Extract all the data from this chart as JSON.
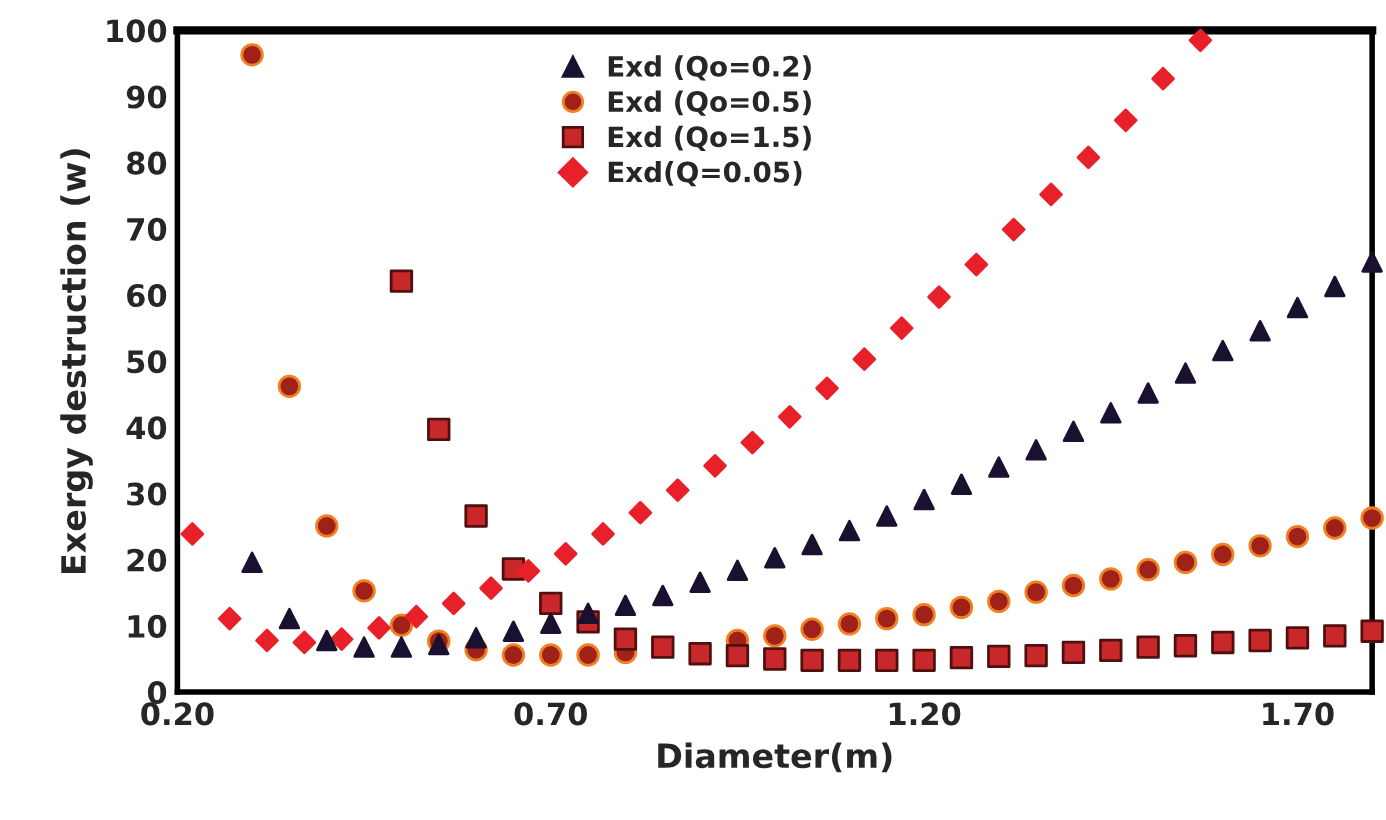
{
  "chart_data": {
    "type": "scatter",
    "xlabel": "Diameter(m)",
    "ylabel": "Exergy destruction (w)",
    "xlim": [
      0.2,
      1.8
    ],
    "xticks": [
      {
        "value": 0.2,
        "label": "0.20"
      },
      {
        "value": 0.7,
        "label": "0.70"
      },
      {
        "value": 1.2,
        "label": "1.20"
      },
      {
        "value": 1.7,
        "label": "1.70"
      }
    ],
    "ylim": [
      0,
      100
    ],
    "yticks": [
      0,
      10,
      20,
      30,
      40,
      50,
      60,
      70,
      80,
      90,
      100
    ],
    "grid": false,
    "legend": "top",
    "series": [
      {
        "name": "Exd (Qo=0.2)",
        "color": "#1a1030",
        "marker": "triangle",
        "x": [
          0.3,
          0.35,
          0.4,
          0.45,
          0.5,
          0.55,
          0.6,
          0.65,
          0.7,
          0.75,
          0.8,
          0.85,
          0.9,
          0.95,
          1.0,
          1.05,
          1.1,
          1.15,
          1.2,
          1.25,
          1.3,
          1.35,
          1.4,
          1.45,
          1.5,
          1.55,
          1.6,
          1.65,
          1.7,
          1.75,
          1.8
        ],
        "values": [
          19.6,
          11.1,
          7.8,
          6.8,
          6.8,
          7.2,
          8.2,
          9.2,
          10.4,
          11.9,
          13.1,
          14.6,
          16.6,
          18.4,
          20.3,
          22.3,
          24.4,
          26.6,
          29.1,
          31.4,
          34.0,
          36.6,
          39.4,
          42.2,
          45.2,
          48.2,
          51.6,
          54.6,
          58.1,
          61.3,
          65.0
        ]
      },
      {
        "name": "Exd (Qo=0.5)",
        "color": "#a0201a",
        "marker": "circle",
        "x": [
          0.3,
          0.35,
          0.4,
          0.45,
          0.5,
          0.55,
          0.6,
          0.65,
          0.7,
          0.75,
          0.8,
          0.85,
          0.9,
          0.95,
          1.0,
          1.05,
          1.1,
          1.15,
          1.2,
          1.25,
          1.3,
          1.35,
          1.4,
          1.45,
          1.5,
          1.55,
          1.6,
          1.65,
          1.7,
          1.75,
          1.8
        ],
        "values": [
          96.3,
          46.2,
          25.1,
          15.3,
          10.1,
          7.7,
          6.4,
          5.6,
          5.6,
          5.6,
          6.0,
          null,
          null,
          7.8,
          8.5,
          9.5,
          10.3,
          11.1,
          11.7,
          12.8,
          13.7,
          15.1,
          16.1,
          17.1,
          18.5,
          19.6,
          20.8,
          22.1,
          23.5,
          24.8,
          26.3
        ]
      },
      {
        "name": "Exd (Qo=1.5)",
        "color": "#c8282a",
        "marker": "square",
        "x": [
          0.5,
          0.55,
          0.6,
          0.65,
          0.7,
          0.75,
          0.8,
          0.85,
          0.9,
          0.95,
          1.0,
          1.05,
          1.1,
          1.15,
          1.2,
          1.25,
          1.3,
          1.35,
          1.4,
          1.45,
          1.5,
          1.55,
          1.6,
          1.65,
          1.7,
          1.75,
          1.8
        ],
        "values": [
          62.1,
          39.7,
          26.6,
          18.6,
          13.4,
          10.6,
          8.0,
          6.8,
          5.8,
          5.5,
          5.0,
          4.8,
          4.8,
          4.8,
          4.8,
          5.2,
          5.4,
          5.5,
          6.0,
          6.3,
          6.8,
          7.0,
          7.5,
          7.8,
          8.2,
          8.5,
          9.2
        ]
      },
      {
        "name": "Exd(Q=0.05)",
        "color": "#e8202a",
        "marker": "diamond",
        "x": [
          0.22,
          0.27,
          0.32,
          0.37,
          0.42,
          0.47,
          0.52,
          0.57,
          0.62,
          0.67,
          0.72,
          0.77,
          0.82,
          0.87,
          0.92,
          0.97,
          1.02,
          1.07,
          1.12,
          1.17,
          1.22,
          1.27,
          1.32,
          1.37,
          1.42,
          1.47,
          1.52,
          1.57
        ],
        "values": [
          23.9,
          11.1,
          7.8,
          7.5,
          8.0,
          9.7,
          11.4,
          13.4,
          15.7,
          18.3,
          20.9,
          23.9,
          27.1,
          30.5,
          34.2,
          37.7,
          41.6,
          45.9,
          50.3,
          55.0,
          59.7,
          64.6,
          69.9,
          75.2,
          80.8,
          86.4,
          92.7,
          98.5
        ]
      }
    ]
  }
}
